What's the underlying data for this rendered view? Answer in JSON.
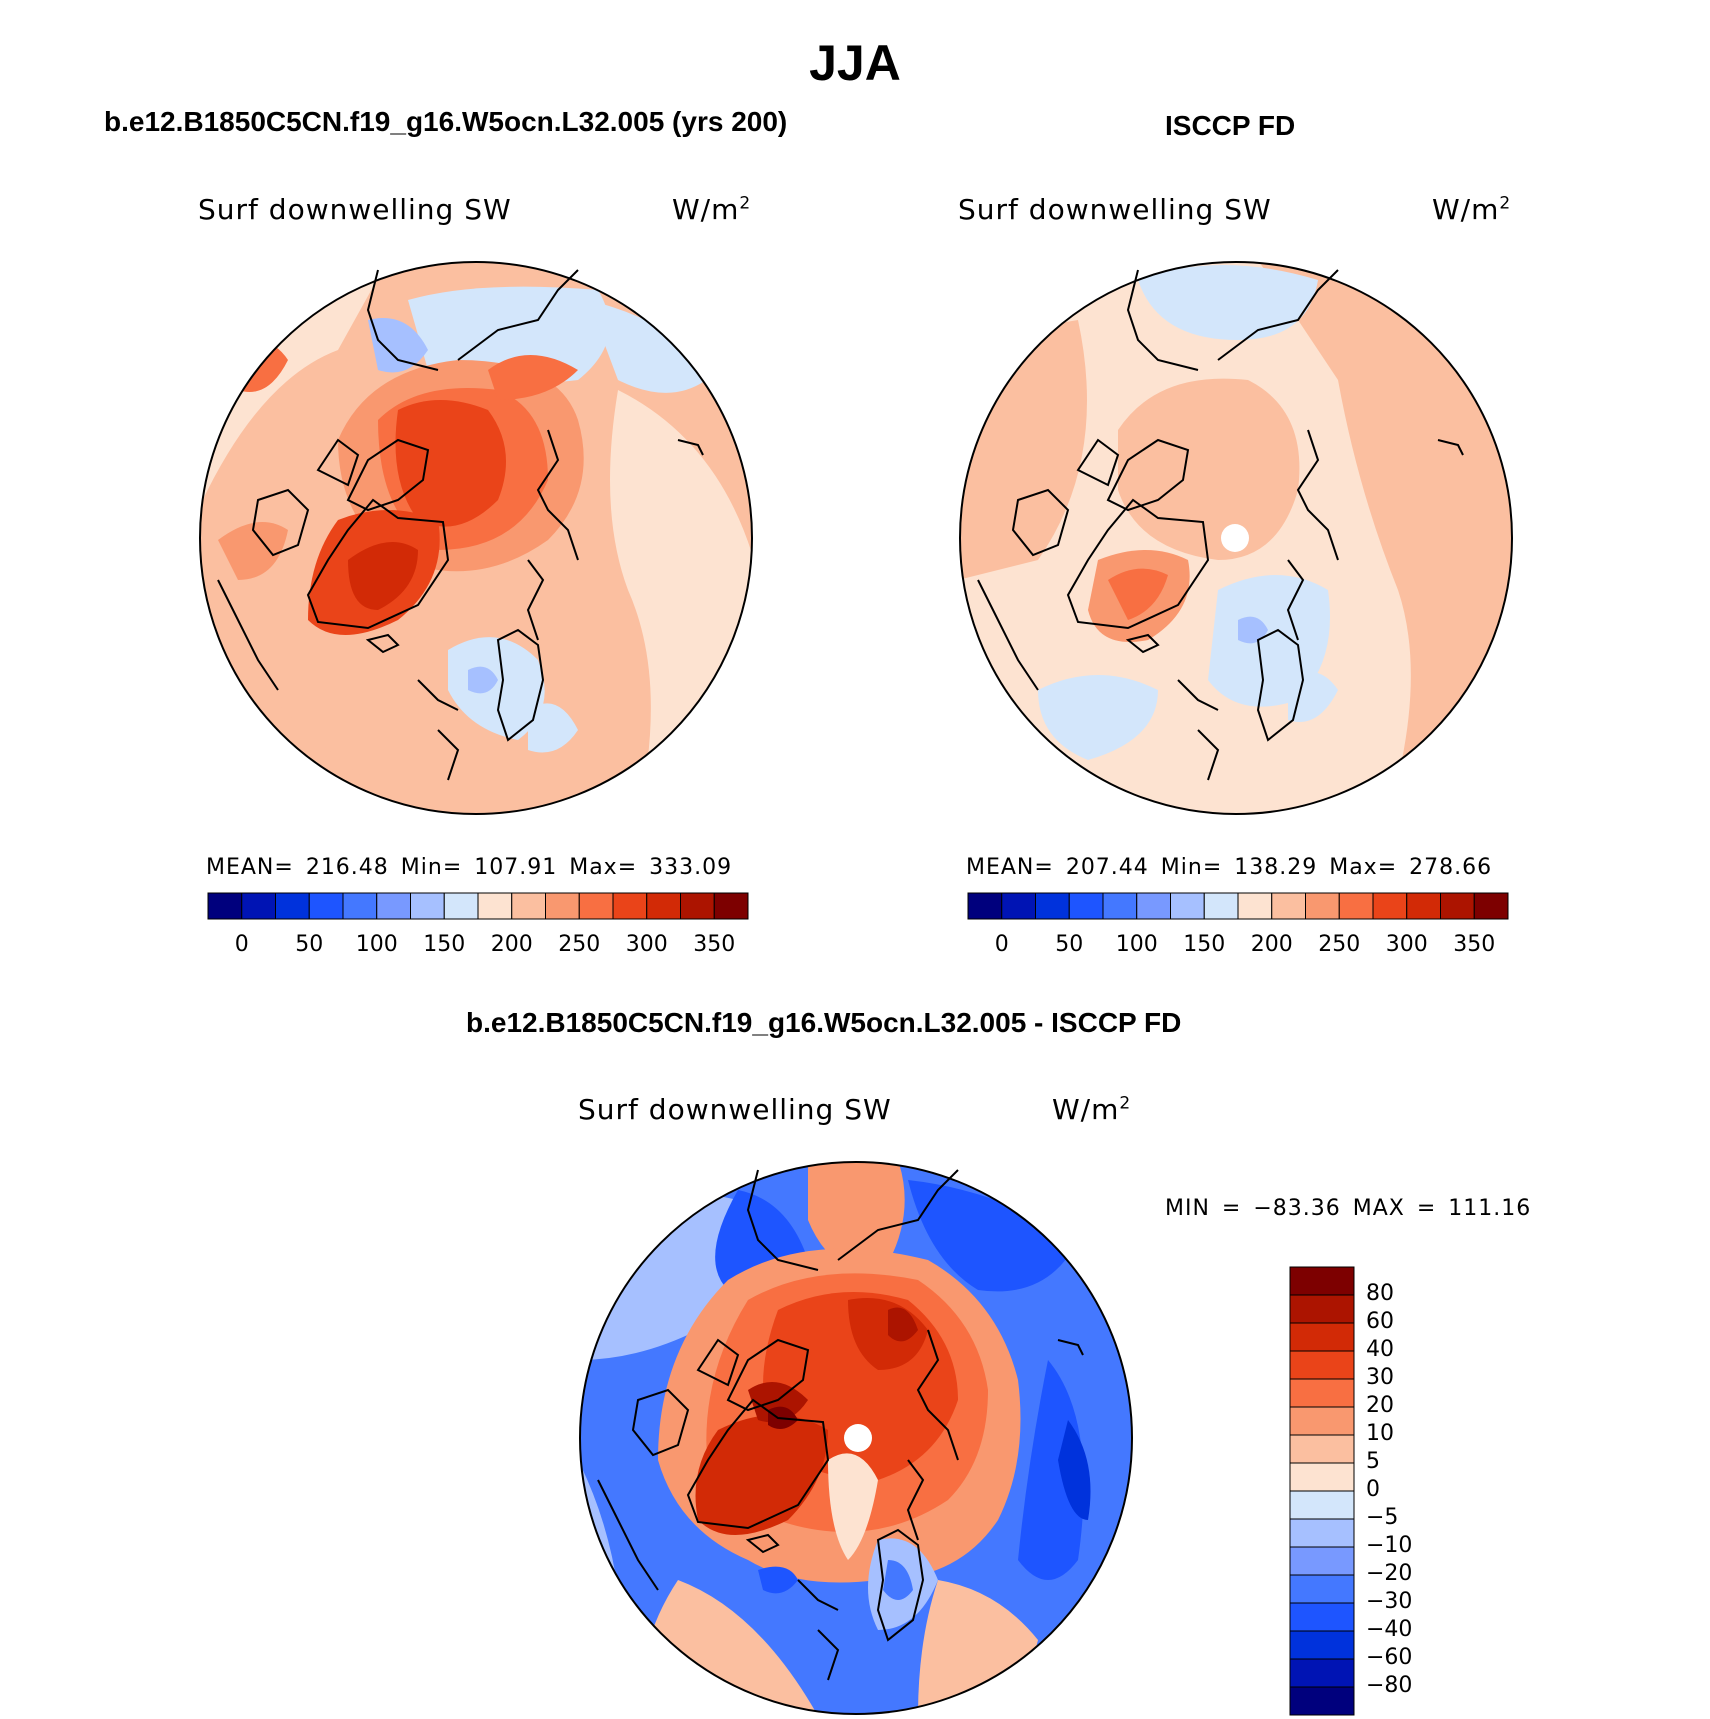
{
  "title": "JJA",
  "panels": [
    {
      "case_title": "b.e12.B1850C5CN.f19_g16.W5ocn.L32.005 (yrs 200)",
      "var_label": "Surf downwelling SW",
      "units_base": "W/m",
      "units_exp": "2",
      "stats": "MEAN= 216.48   Min= 107.91   Max= 333.09"
    },
    {
      "case_title": "ISCCP FD",
      "var_label": "Surf downwelling SW",
      "units_base": "W/m",
      "units_exp": "2",
      "stats": "MEAN= 207.44   Min= 138.29   Max= 278.66"
    },
    {
      "case_title": "b.e12.B1850C5CN.f19_g16.W5ocn.L32.005 - ISCCP FD",
      "var_label": "Surf downwelling SW",
      "units_base": "W/m",
      "units_exp": "2",
      "stats": "MIN = −83.36 MAX = 111.16"
    }
  ],
  "colorbar_top": {
    "labels": [
      "0",
      "50",
      "100",
      "150",
      "200",
      "250",
      "300",
      "350"
    ],
    "colors": [
      "#00007d",
      "#0014b4",
      "#0032dc",
      "#1e55ff",
      "#4478ff",
      "#7899ff",
      "#a6c0ff",
      "#d3e6fb",
      "#fde3d1",
      "#fbbfa0",
      "#f9986f",
      "#f86f42",
      "#ea4419",
      "#d22a06",
      "#ac1400",
      "#7d0000"
    ]
  },
  "colorbar_diff": {
    "labels": [
      "80",
      "60",
      "40",
      "30",
      "20",
      "10",
      "5",
      "0",
      "−5",
      "−10",
      "−20",
      "−30",
      "−40",
      "−60",
      "−80"
    ],
    "colors": [
      "#7d0000",
      "#ac1400",
      "#d22a06",
      "#ea4419",
      "#f86f42",
      "#f9986f",
      "#fbbfa0",
      "#fde3d1",
      "#d3e6fb",
      "#a6c0ff",
      "#7899ff",
      "#4478ff",
      "#1e55ff",
      "#0032dc",
      "#0014b4",
      "#00007d"
    ]
  }
}
